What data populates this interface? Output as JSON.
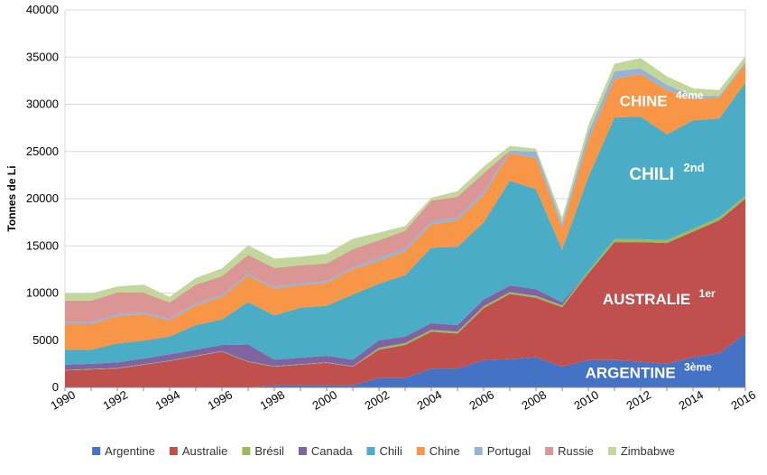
{
  "chart_data": {
    "type": "area",
    "stacked": true,
    "ylabel": "Tonnes de Li",
    "ylim": [
      0,
      40000
    ],
    "yticks": [
      0,
      5000,
      10000,
      15000,
      20000,
      25000,
      30000,
      35000,
      40000
    ],
    "xlim": [
      1990,
      2016
    ],
    "xticks": [
      "1990",
      "1992",
      "1994",
      "1996",
      "1998",
      "2000",
      "2002",
      "2004",
      "2006",
      "2008",
      "2010",
      "2012",
      "2014",
      "2016"
    ],
    "grid": "horizontal",
    "legend_position": "bottom",
    "x": [
      1990,
      1991,
      1992,
      1993,
      1994,
      1995,
      1996,
      1997,
      1998,
      1999,
      2000,
      2001,
      2002,
      2003,
      2004,
      2005,
      2006,
      2007,
      2008,
      2009,
      2010,
      2011,
      2012,
      2013,
      2014,
      2015,
      2016
    ],
    "series": [
      {
        "name": "Argentine",
        "color": "#4472C4",
        "values": [
          0,
          0,
          0,
          0,
          0,
          0,
          0,
          0,
          200,
          200,
          200,
          200,
          1000,
          1000,
          2000,
          2000,
          2900,
          3000,
          3200,
          2200,
          2900,
          2900,
          2700,
          2500,
          3200,
          3600,
          5700
        ]
      },
      {
        "name": "Australie",
        "color": "#C0504D",
        "values": [
          1800,
          1900,
          2000,
          2400,
          2800,
          3300,
          3800,
          2700,
          2000,
          2200,
          2400,
          2000,
          3000,
          3500,
          3900,
          3700,
          5500,
          6900,
          6300,
          6300,
          9200,
          12500,
          12700,
          12800,
          13300,
          14100,
          14300
        ]
      },
      {
        "name": "Brésil",
        "color": "#9BBB59",
        "values": [
          50,
          50,
          50,
          50,
          50,
          50,
          50,
          50,
          50,
          50,
          50,
          50,
          200,
          200,
          200,
          200,
          200,
          200,
          200,
          200,
          200,
          300,
          300,
          300,
          300,
          300,
          300
        ]
      },
      {
        "name": "Canada",
        "color": "#8064A2",
        "values": [
          550,
          550,
          600,
          600,
          650,
          650,
          650,
          1800,
          700,
          700,
          700,
          700,
          800,
          700,
          700,
          700,
          700,
          700,
          700,
          300,
          0,
          0,
          0,
          0,
          0,
          0,
          0
        ]
      },
      {
        "name": "Chili",
        "color": "#4BACC6",
        "values": [
          1600,
          1500,
          2000,
          1900,
          1900,
          2600,
          2700,
          4500,
          4700,
          5300,
          5300,
          6900,
          6000,
          6500,
          8000,
          8300,
          8200,
          11100,
          10600,
          5600,
          10000,
          12900,
          13000,
          11200,
          11500,
          10500,
          12000
        ]
      },
      {
        "name": "Chine",
        "color": "#F79646",
        "values": [
          2700,
          2700,
          2900,
          2800,
          1700,
          2100,
          2400,
          2800,
          2800,
          2400,
          2400,
          2700,
          2400,
          2500,
          2500,
          2800,
          2900,
          2900,
          3300,
          2300,
          3900,
          4100,
          4500,
          4700,
          2300,
          2200,
          2000
        ]
      },
      {
        "name": "Portugal",
        "color": "#95B3D7",
        "values": [
          200,
          200,
          200,
          200,
          200,
          200,
          200,
          200,
          200,
          200,
          200,
          200,
          300,
          300,
          300,
          300,
          300,
          300,
          700,
          500,
          800,
          800,
          600,
          570,
          300,
          200,
          200
        ]
      },
      {
        "name": "Russie",
        "color": "#DA9694",
        "values": [
          2300,
          2300,
          2300,
          2100,
          1700,
          2000,
          2000,
          2000,
          2000,
          1900,
          1900,
          1900,
          1900,
          1900,
          2200,
          2200,
          2000,
          0,
          0,
          0,
          0,
          0,
          0,
          0,
          0,
          0,
          0
        ]
      },
      {
        "name": "Zimbabwe",
        "color": "#C4D79B",
        "values": [
          750,
          750,
          650,
          850,
          600,
          700,
          800,
          1000,
          1000,
          900,
          1000,
          1100,
          800,
          500,
          300,
          600,
          700,
          500,
          300,
          600,
          800,
          800,
          1100,
          900,
          800,
          600,
          600
        ]
      }
    ],
    "annotations": [
      {
        "text": "ARGENTINE",
        "sup": "3ème",
        "x": 2012.3,
        "y": 1000,
        "size": 17
      },
      {
        "text": "AUSTRALIE",
        "sup": "1er",
        "x": 2012.7,
        "y": 8800,
        "size": 17
      },
      {
        "text": "CHILI",
        "sup": "2nd",
        "x": 2013.0,
        "y": 22000,
        "size": 19
      },
      {
        "text": "CHINE",
        "sup": "4ème",
        "x": 2012.8,
        "y": 29800,
        "size": 17
      }
    ]
  }
}
